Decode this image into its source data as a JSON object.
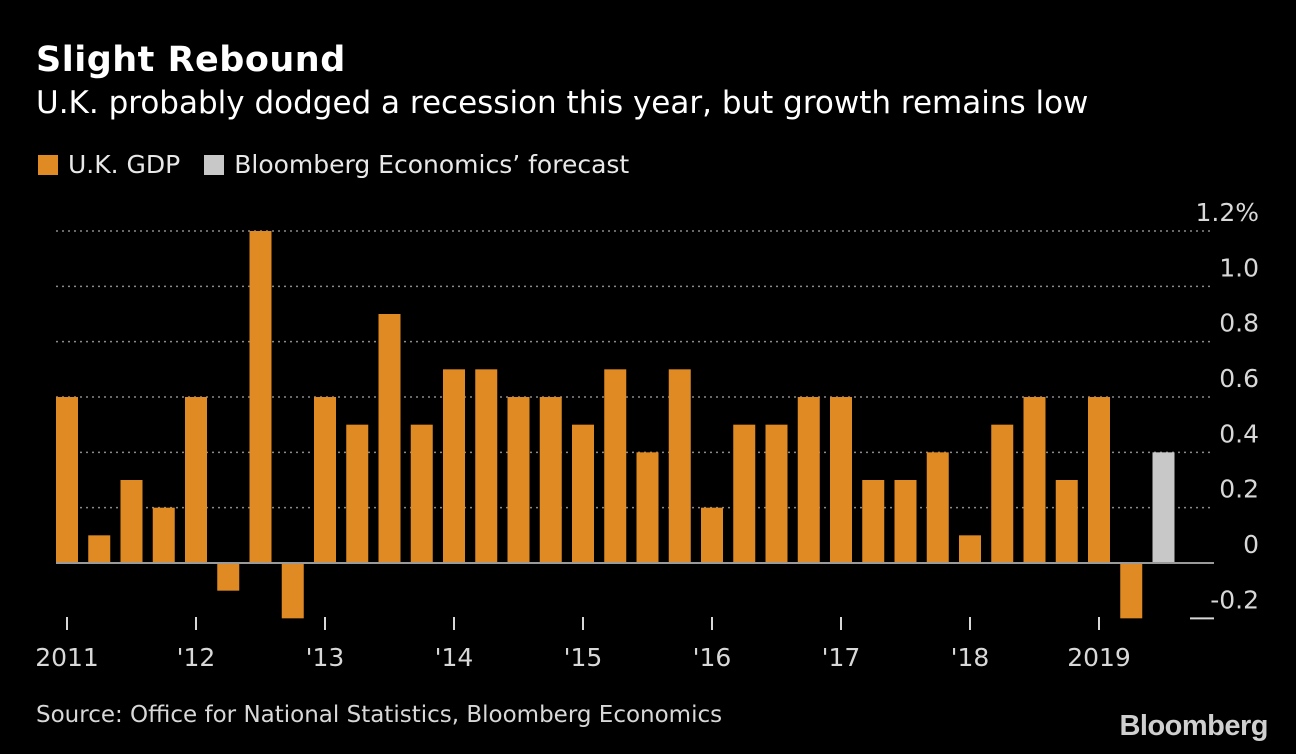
{
  "header": {
    "title": "Slight Rebound",
    "subtitle": "U.K. probably dodged a recession this year, but growth remains low"
  },
  "legend": [
    {
      "label": "U.K. GDP",
      "color": "#e08a24"
    },
    {
      "label": "Bloomberg Economics’ forecast",
      "color": "#c8c8c8"
    }
  ],
  "footer": {
    "source": "Source: Office for National Statistics, Bloomberg Economics",
    "logo": "Bloomberg"
  },
  "chart_data": {
    "type": "bar",
    "ylim": [
      -0.2,
      1.2
    ],
    "y_ticks": [
      {
        "value": 1.2,
        "label": "1.2%"
      },
      {
        "value": 1.0,
        "label": "1.0"
      },
      {
        "value": 0.8,
        "label": "0.8"
      },
      {
        "value": 0.6,
        "label": "0.6"
      },
      {
        "value": 0.4,
        "label": "0.4"
      },
      {
        "value": 0.2,
        "label": "0.2"
      },
      {
        "value": 0,
        "label": "0"
      },
      {
        "value": -0.2,
        "label": "-0.2"
      }
    ],
    "x_ticks": [
      {
        "index": 0,
        "label": "2011"
      },
      {
        "index": 4,
        "label": "'12"
      },
      {
        "index": 8,
        "label": "'13"
      },
      {
        "index": 12,
        "label": "'14"
      },
      {
        "index": 16,
        "label": "'15"
      },
      {
        "index": 20,
        "label": "'16"
      },
      {
        "index": 24,
        "label": "'17"
      },
      {
        "index": 28,
        "label": "'18"
      },
      {
        "index": 32,
        "label": "2019"
      }
    ],
    "series": [
      {
        "name": "U.K. GDP",
        "color": "#e08a24",
        "values": [
          0.6,
          0.1,
          0.3,
          0.2,
          0.6,
          -0.1,
          1.2,
          -0.2,
          0.6,
          0.5,
          0.9,
          0.5,
          0.7,
          0.7,
          0.6,
          0.6,
          0.5,
          0.7,
          0.4,
          0.7,
          0.2,
          0.5,
          0.5,
          0.6,
          0.6,
          0.3,
          0.3,
          0.4,
          0.1,
          0.5,
          0.6,
          0.3,
          0.6,
          -0.2
        ]
      },
      {
        "name": "Bloomberg Economics’ forecast",
        "color": "#c8c8c8",
        "start_index": 34,
        "values": [
          0.4
        ]
      }
    ]
  }
}
